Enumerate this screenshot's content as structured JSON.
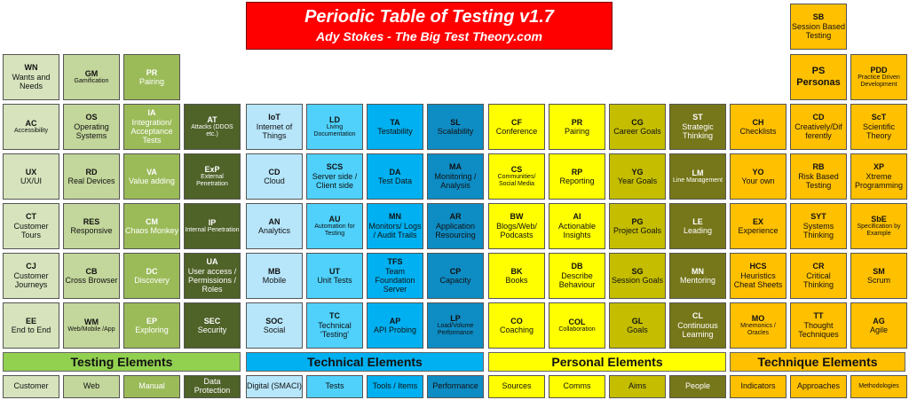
{
  "header": {
    "title": "Periodic Table of Testing v1.7",
    "subtitle": "Ady Stokes - The Big Test Theory.com"
  },
  "colors": {
    "testing": [
      "#d6e3bc",
      "#c3d69b",
      "#9bbb59",
      "#4f6228"
    ],
    "technical": [
      "#b7e6fb",
      "#4fd1fb",
      "#00b0f0",
      "#0e8cc4"
    ],
    "personal": [
      "#ffff00",
      "#ffff00",
      "#b8b800",
      "#7b7b00"
    ],
    "technique": [
      "#ffc000",
      "#ffc000",
      "#ffc000",
      "#ffc000"
    ],
    "banner": "#ff0000"
  },
  "top_cells": [
    {
      "sym": "WN",
      "name": "Wants and Needs"
    },
    {
      "sym": "GM",
      "name": "Gamification"
    },
    {
      "sym": "PR",
      "name": "Pairing"
    },
    {
      "sym": "SB",
      "name": "Session Based Testing"
    },
    {
      "sym": "PS",
      "name": "Personas"
    },
    {
      "sym": "PDD",
      "name": "Practice Driven Development"
    }
  ],
  "grid": [
    [
      {
        "sym": "AC",
        "name": "Accessibility"
      },
      {
        "sym": "OS",
        "name": "Operating Systems"
      },
      {
        "sym": "IA",
        "name": "Integration/ Acceptance Tests"
      },
      {
        "sym": "AT",
        "name": "Attacks (DDOS etc.)"
      },
      {
        "sym": "IoT",
        "name": "Internet of Things"
      },
      {
        "sym": "LD",
        "name": "Living Documentation"
      },
      {
        "sym": "TA",
        "name": "Testability"
      },
      {
        "sym": "SL",
        "name": "Scalability"
      },
      {
        "sym": "CF",
        "name": "Conference"
      },
      {
        "sym": "PR",
        "name": "Pairing"
      },
      {
        "sym": "CG",
        "name": "Career Goals"
      },
      {
        "sym": "ST",
        "name": "Strategic Thinking"
      },
      {
        "sym": "CH",
        "name": "Checklists"
      },
      {
        "sym": "CD",
        "name": "Creatively/Dif ferently"
      },
      {
        "sym": "ScT",
        "name": "Scientific Theory"
      }
    ],
    [
      {
        "sym": "UX",
        "name": "UX/UI"
      },
      {
        "sym": "RD",
        "name": "Real Devices"
      },
      {
        "sym": "VA",
        "name": "Value adding"
      },
      {
        "sym": "ExP",
        "name": "External Penetration"
      },
      {
        "sym": "CD",
        "name": "Cloud"
      },
      {
        "sym": "SCS",
        "name": "Server side / Client side"
      },
      {
        "sym": "DA",
        "name": "Test Data"
      },
      {
        "sym": "MA",
        "name": "Monitoring / Analysis"
      },
      {
        "sym": "CS",
        "name": "Communities/ Social Media"
      },
      {
        "sym": "RP",
        "name": "Reporting"
      },
      {
        "sym": "YG",
        "name": "Year Goals"
      },
      {
        "sym": "LM",
        "name": "Line Management"
      },
      {
        "sym": "YO",
        "name": "Your own"
      },
      {
        "sym": "RB",
        "name": "Risk Based Testing"
      },
      {
        "sym": "XP",
        "name": "Xtreme Programming"
      }
    ],
    [
      {
        "sym": "CT",
        "name": "Customer Tours"
      },
      {
        "sym": "RES",
        "name": "Responsive"
      },
      {
        "sym": "CM",
        "name": "Chaos Monkey"
      },
      {
        "sym": "IP",
        "name": "Internal Penetration"
      },
      {
        "sym": "AN",
        "name": "Analytics"
      },
      {
        "sym": "AU",
        "name": "Automation for Testing"
      },
      {
        "sym": "MN",
        "name": "Monitors/ Logs / Audit Trails"
      },
      {
        "sym": "AR",
        "name": "Application Resourcing"
      },
      {
        "sym": "BW",
        "name": "Blogs/Web/ Podcasts"
      },
      {
        "sym": "AI",
        "name": "Actionable Insights"
      },
      {
        "sym": "PG",
        "name": "Project Goals"
      },
      {
        "sym": "LE",
        "name": "Leading"
      },
      {
        "sym": "EX",
        "name": "Experience"
      },
      {
        "sym": "SYT",
        "name": "Systems Thinking"
      },
      {
        "sym": "SbE",
        "name": "Specification by Example"
      }
    ],
    [
      {
        "sym": "CJ",
        "name": "Customer Journeys"
      },
      {
        "sym": "CB",
        "name": "Cross Browser"
      },
      {
        "sym": "DC",
        "name": "Discovery"
      },
      {
        "sym": "UA",
        "name": "User access / Permissions / Roles"
      },
      {
        "sym": "MB",
        "name": "Mobile"
      },
      {
        "sym": "UT",
        "name": "Unit Tests"
      },
      {
        "sym": "TFS",
        "name": "Team Foundation Server"
      },
      {
        "sym": "CP",
        "name": "Capacity"
      },
      {
        "sym": "BK",
        "name": "Books"
      },
      {
        "sym": "DB",
        "name": "Describe Behaviour"
      },
      {
        "sym": "SG",
        "name": "Session Goals"
      },
      {
        "sym": "MN",
        "name": "Mentoring"
      },
      {
        "sym": "HCS",
        "name": "Heuristics Cheat Sheets"
      },
      {
        "sym": "CR",
        "name": "Critical Thinking"
      },
      {
        "sym": "SM",
        "name": "Scrum"
      }
    ],
    [
      {
        "sym": "EE",
        "name": "End to End"
      },
      {
        "sym": "WM",
        "name": "Web/Mobile /App"
      },
      {
        "sym": "EP",
        "name": "Exploring"
      },
      {
        "sym": "SEC",
        "name": "Security"
      },
      {
        "sym": "SOC",
        "name": "Social"
      },
      {
        "sym": "TC",
        "name": "Technical 'Testing'"
      },
      {
        "sym": "AP",
        "name": "API Probing"
      },
      {
        "sym": "LP",
        "name": "Load/Volume Performance"
      },
      {
        "sym": "CO",
        "name": "Coaching"
      },
      {
        "sym": "COL",
        "name": "Collaboration"
      },
      {
        "sym": "GL",
        "name": "Goals"
      },
      {
        "sym": "CL",
        "name": "Continuous Learning"
      },
      {
        "sym": "MO",
        "name": "Mnemonics / Oracles"
      },
      {
        "sym": "TT",
        "name": "Thought Techniques"
      },
      {
        "sym": "AG",
        "name": "Agile"
      }
    ]
  ],
  "categories": [
    {
      "label": "Testing Elements",
      "color": "#92d050"
    },
    {
      "label": "Technical Elements",
      "color": "#00b0f0"
    },
    {
      "label": "Personal Elements",
      "color": "#ffff00"
    },
    {
      "label": "Technique Elements",
      "color": "#ffc000"
    }
  ],
  "footer": [
    "Customer",
    "Web",
    "Manual",
    "Data Protection",
    "Digital (SMACI)",
    "Tests",
    "Tools / Items",
    "Performance",
    "Sources",
    "Comms",
    "Aims",
    "People",
    "Indicators",
    "Approaches",
    "Methodologies"
  ]
}
